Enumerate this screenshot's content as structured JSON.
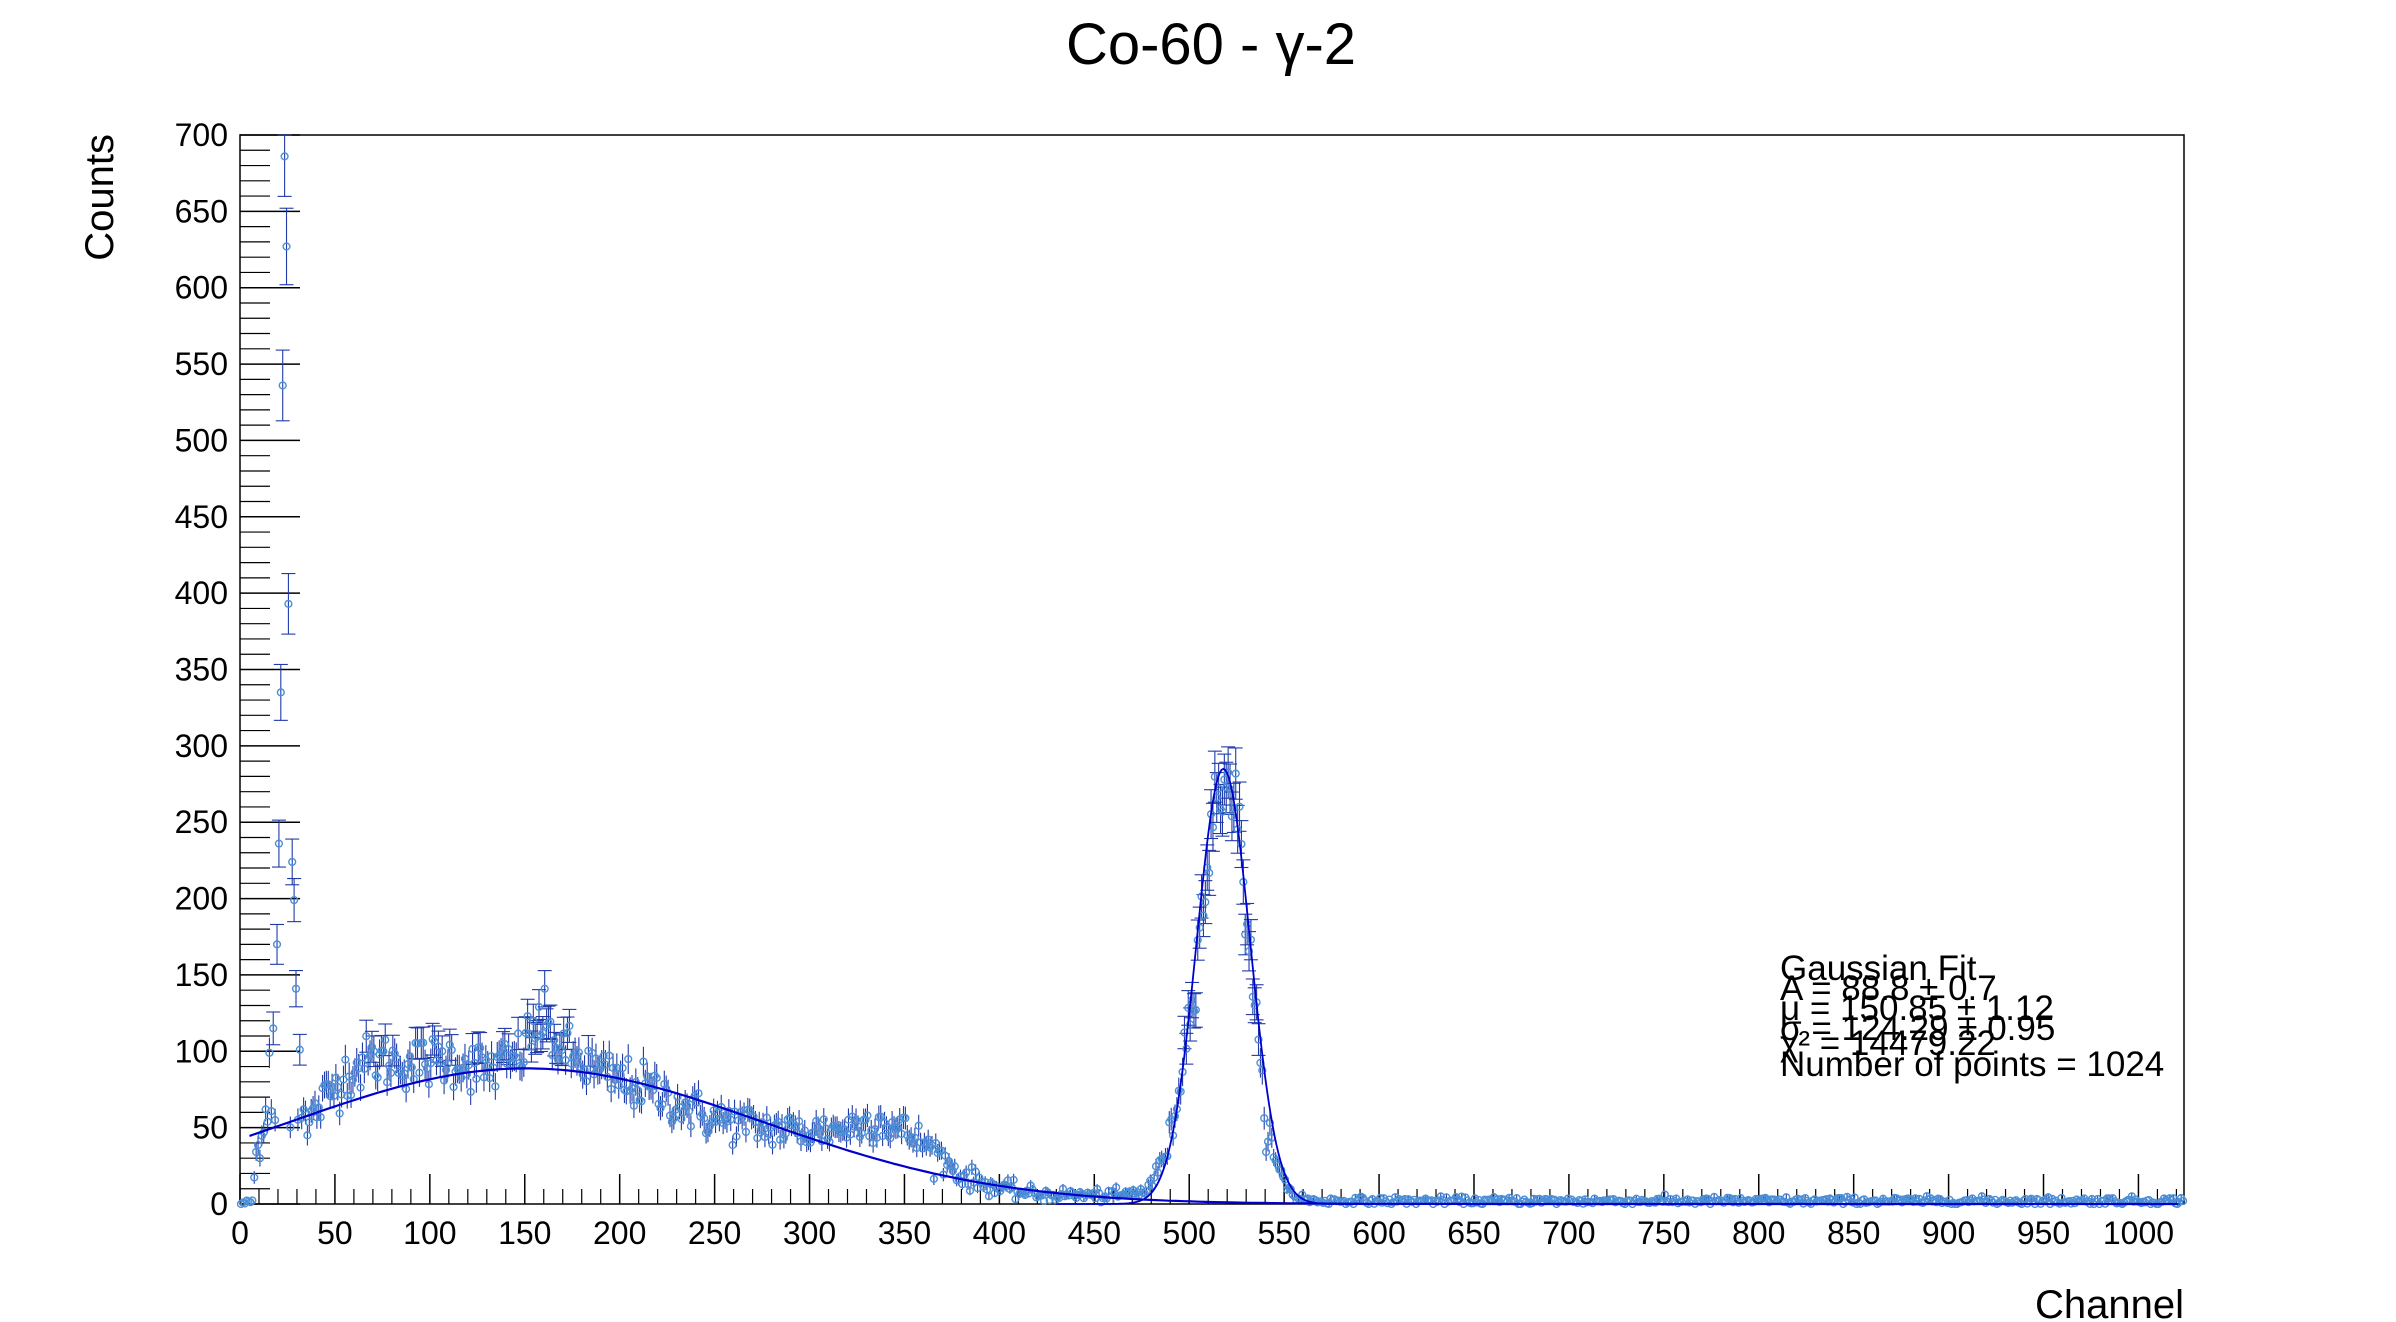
{
  "colors": {
    "points": "#4a8fd8",
    "error_bars": "#1f3aa8",
    "fit": "#0000cc",
    "frame": "#000000"
  },
  "chart_data": {
    "type": "scatter",
    "title": "Co-60 - γ-2",
    "xlabel": "Channel",
    "ylabel": "Counts",
    "xlim": [
      0,
      1024
    ],
    "ylim": [
      0,
      700
    ],
    "x_ticks": [
      0,
      50,
      100,
      150,
      200,
      250,
      300,
      350,
      400,
      450,
      500,
      550,
      600,
      650,
      700,
      750,
      800,
      850,
      900,
      950,
      1000
    ],
    "y_ticks": [
      0,
      50,
      100,
      150,
      200,
      250,
      300,
      350,
      400,
      450,
      500,
      550,
      600,
      650,
      700
    ],
    "grid": false,
    "legend": "none",
    "n_points": 1024,
    "low_channel_peaks": [
      {
        "x": 15,
        "y": 99
      },
      {
        "x": 17,
        "y": 115
      },
      {
        "x": 19,
        "y": 170
      },
      {
        "x": 20,
        "y": 236
      },
      {
        "x": 21,
        "y": 335
      },
      {
        "x": 22,
        "y": 536
      },
      {
        "x": 23,
        "y": 686
      },
      {
        "x": 24,
        "y": 627
      },
      {
        "x": 25,
        "y": 393
      },
      {
        "x": 27,
        "y": 224
      },
      {
        "x": 28,
        "y": 199
      },
      {
        "x": 29,
        "y": 141
      },
      {
        "x": 31,
        "y": 101
      },
      {
        "x": 33,
        "y": 62
      },
      {
        "x": 35,
        "y": 45
      }
    ],
    "spectrum_anchors": [
      {
        "x": 0,
        "y": 0
      },
      {
        "x": 3,
        "y": 1
      },
      {
        "x": 6,
        "y": 2
      },
      {
        "x": 8,
        "y": 32
      },
      {
        "x": 10,
        "y": 42
      },
      {
        "x": 13,
        "y": 60
      },
      {
        "x": 36,
        "y": 55
      },
      {
        "x": 45,
        "y": 70
      },
      {
        "x": 55,
        "y": 85
      },
      {
        "x": 70,
        "y": 95
      },
      {
        "x": 90,
        "y": 92
      },
      {
        "x": 110,
        "y": 95
      },
      {
        "x": 130,
        "y": 88
      },
      {
        "x": 145,
        "y": 95
      },
      {
        "x": 158,
        "y": 120
      },
      {
        "x": 170,
        "y": 100
      },
      {
        "x": 190,
        "y": 85
      },
      {
        "x": 215,
        "y": 75
      },
      {
        "x": 245,
        "y": 57
      },
      {
        "x": 275,
        "y": 50
      },
      {
        "x": 300,
        "y": 47
      },
      {
        "x": 320,
        "y": 50
      },
      {
        "x": 335,
        "y": 55
      },
      {
        "x": 350,
        "y": 47
      },
      {
        "x": 365,
        "y": 35
      },
      {
        "x": 380,
        "y": 18
      },
      {
        "x": 400,
        "y": 10
      },
      {
        "x": 420,
        "y": 6
      },
      {
        "x": 440,
        "y": 6
      },
      {
        "x": 460,
        "y": 5
      },
      {
        "x": 475,
        "y": 8
      },
      {
        "x": 482,
        "y": 18
      },
      {
        "x": 490,
        "y": 45
      },
      {
        "x": 498,
        "y": 110
      },
      {
        "x": 505,
        "y": 180
      },
      {
        "x": 512,
        "y": 250
      },
      {
        "x": 518,
        "y": 285
      },
      {
        "x": 522,
        "y": 275
      },
      {
        "x": 527,
        "y": 230
      },
      {
        "x": 532,
        "y": 160
      },
      {
        "x": 538,
        "y": 70
      },
      {
        "x": 545,
        "y": 25
      },
      {
        "x": 555,
        "y": 5
      },
      {
        "x": 565,
        "y": 2
      },
      {
        "x": 1024,
        "y": 2
      }
    ],
    "fit": {
      "name": "Gaussian Fit",
      "A": 88.8,
      "A_err": 0.7,
      "mu": 150.85,
      "mu_err": 1.12,
      "sigma": 124.29,
      "sigma_err": 0.95,
      "chi2": 14479.22,
      "x_range": [
        5,
        1024
      ],
      "overlay_peak": {
        "amplitude": 285,
        "mean": 518,
        "sigma": 14,
        "x_range": [
          430,
          600
        ]
      }
    },
    "annotation_lines": [
      "Gaussian Fit",
      "A = 88.8 ± 0.7",
      "μ = 150.85 ± 1.12",
      "σ = 124.29 ± 0.95",
      "χ² = 14479.22",
      "Number of points = 1024"
    ]
  }
}
